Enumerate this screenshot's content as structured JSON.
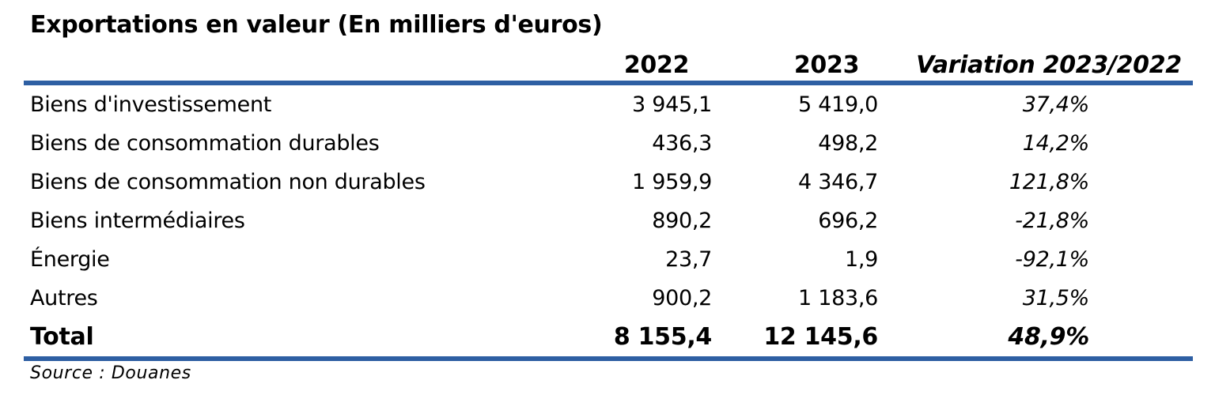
{
  "title": "Exportations en valeur (En milliers d'euros)",
  "columns": {
    "y2022": "2022",
    "y2023": "2023",
    "variation": "Variation 2023/2022"
  },
  "rows": [
    {
      "label": "Biens d'investissement",
      "v2022": "3 945,1",
      "v2023": "5 419,0",
      "variation": "37,4%"
    },
    {
      "label": "Biens de consommation durables",
      "v2022": "436,3",
      "v2023": "498,2",
      "variation": "14,2%"
    },
    {
      "label": "Biens de consommation non durables",
      "v2022": "1 959,9",
      "v2023": "4 346,7",
      "variation": "121,8%"
    },
    {
      "label": "Biens intermédiaires",
      "v2022": "890,2",
      "v2023": "696,2",
      "variation": "-21,8%"
    },
    {
      "label": "Énergie",
      "v2022": "23,7",
      "v2023": "1,9",
      "variation": "-92,1%"
    },
    {
      "label": "Autres",
      "v2022": "900,2",
      "v2023": "1 183,6",
      "variation": "31,5%"
    }
  ],
  "total": {
    "label": "Total",
    "v2022": "8 155,4",
    "v2023": "12 145,6",
    "variation": "48,9%"
  },
  "source": "Source : Douanes",
  "colors": {
    "rule": "#2e5fa3"
  }
}
